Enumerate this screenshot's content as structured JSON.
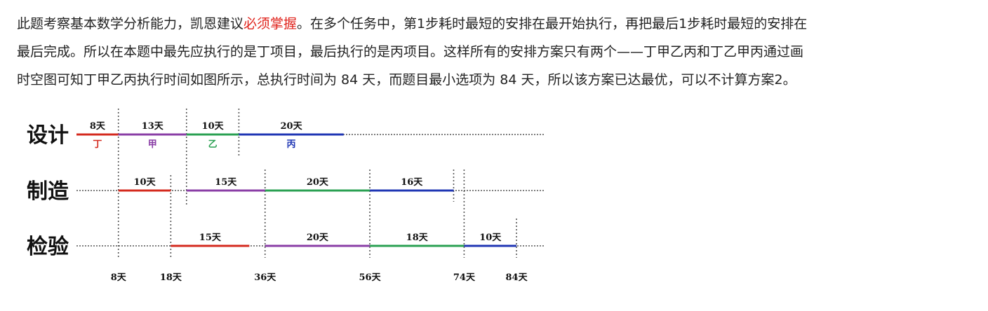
{
  "explanation": {
    "line1_pre": "此题考察基本数学分析能力，凯恩建议",
    "line1_highlight": "必须掌握",
    "line1_post": "。在多个任务中，第1步耗时最短的安排在最开始执行，再把最后1步耗时最短的安排在",
    "line2": "最后完成。所以在本题中最先应执行的是丁项目，最后执行的是丙项目。这样所有的安排方案只有两个——丁甲乙丙和丁乙甲丙通过画",
    "line3": "时空图可知丁甲乙丙执行时间如图所示，总执行时间为 84 天，而题目最小选项为 84 天，所以该方案已达最优，可以不计算方案2。",
    "highlight_color": "#e0231c"
  },
  "chart_data": {
    "type": "gantt",
    "unit": "天",
    "rows": [
      {
        "name": "设计",
        "segments": [
          {
            "start": 0,
            "duration": 8,
            "label": "8天",
            "task": "丁",
            "color": "#d42a1e"
          },
          {
            "start": 8,
            "duration": 13,
            "label": "13天",
            "task": "甲",
            "color": "#8a3ea6"
          },
          {
            "start": 21,
            "duration": 10,
            "label": "10天",
            "task": "乙",
            "color": "#2aa052"
          },
          {
            "start": 31,
            "duration": 20,
            "label": "20天",
            "task": "丙",
            "color": "#1f36b4"
          }
        ]
      },
      {
        "name": "制造",
        "segments": [
          {
            "start": 8,
            "duration": 10,
            "label": "10天",
            "color": "#d42a1e"
          },
          {
            "start": 21,
            "duration": 15,
            "label": "15天",
            "color": "#8a3ea6"
          },
          {
            "start": 36,
            "duration": 20,
            "label": "20天",
            "color": "#2aa052"
          },
          {
            "start": 56,
            "duration": 16,
            "label": "16天",
            "color": "#1f36b4"
          }
        ]
      },
      {
        "name": "检验",
        "segments": [
          {
            "start": 18,
            "duration": 15,
            "label": "15天",
            "color": "#d42a1e"
          },
          {
            "start": 36,
            "duration": 20,
            "label": "20天",
            "color": "#8a3ea6"
          },
          {
            "start": 56,
            "duration": 18,
            "label": "18天",
            "color": "#2aa052"
          },
          {
            "start": 74,
            "duration": 10,
            "label": "10天",
            "color": "#1f36b4"
          }
        ]
      }
    ],
    "ticks": [
      {
        "value": 8,
        "label": "8天"
      },
      {
        "value": 18,
        "label": "18天"
      },
      {
        "value": 36,
        "label": "36天"
      },
      {
        "value": 56,
        "label": "56天"
      },
      {
        "value": 74,
        "label": "74天"
      },
      {
        "value": 84,
        "label": "84天"
      }
    ],
    "markers": [
      8,
      18,
      21,
      31,
      36,
      56,
      72,
      74,
      84
    ],
    "xlim": [
      0,
      86
    ],
    "axis_color": "#555555"
  }
}
